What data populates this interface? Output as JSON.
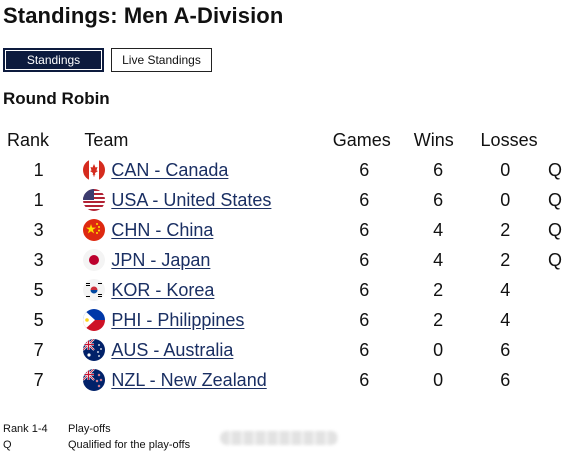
{
  "page": {
    "title": "Standings: Men A-Division"
  },
  "tabs": {
    "standings": "Standings",
    "live": "Live Standings"
  },
  "section": {
    "title": "Round Robin"
  },
  "table": {
    "headers": {
      "rank": "Rank",
      "team": "Team",
      "games": "Games",
      "wins": "Wins",
      "losses": "Losses"
    },
    "rows": [
      {
        "rank": "1",
        "team": "CAN - Canada",
        "flag": "canada-flag-icon",
        "games": "6",
        "wins": "6",
        "losses": "0",
        "q": "Q"
      },
      {
        "rank": "1",
        "team": "USA - United States",
        "flag": "usa-flag-icon",
        "games": "6",
        "wins": "6",
        "losses": "0",
        "q": "Q"
      },
      {
        "rank": "3",
        "team": "CHN - China",
        "flag": "china-flag-icon",
        "games": "6",
        "wins": "4",
        "losses": "2",
        "q": "Q"
      },
      {
        "rank": "3",
        "team": "JPN - Japan",
        "flag": "japan-flag-icon",
        "games": "6",
        "wins": "4",
        "losses": "2",
        "q": "Q"
      },
      {
        "rank": "5",
        "team": "KOR - Korea",
        "flag": "korea-flag-icon",
        "games": "6",
        "wins": "2",
        "losses": "4",
        "q": ""
      },
      {
        "rank": "5",
        "team": "PHI - Philippines",
        "flag": "philippines-flag-icon",
        "games": "6",
        "wins": "2",
        "losses": "4",
        "q": ""
      },
      {
        "rank": "7",
        "team": "AUS - Australia",
        "flag": "australia-flag-icon",
        "games": "6",
        "wins": "0",
        "losses": "6",
        "q": ""
      },
      {
        "rank": "7",
        "team": "NZL - New Zealand",
        "flag": "new-zealand-flag-icon",
        "games": "6",
        "wins": "0",
        "losses": "6",
        "q": ""
      }
    ]
  },
  "legend": [
    {
      "key": "Rank 1-4",
      "value": "Play-offs"
    },
    {
      "key": "Q",
      "value": "Qualified for the play-offs"
    }
  ],
  "colors": {
    "tab_active_bg": "#0d1b3e",
    "link": "#1a2f63"
  }
}
